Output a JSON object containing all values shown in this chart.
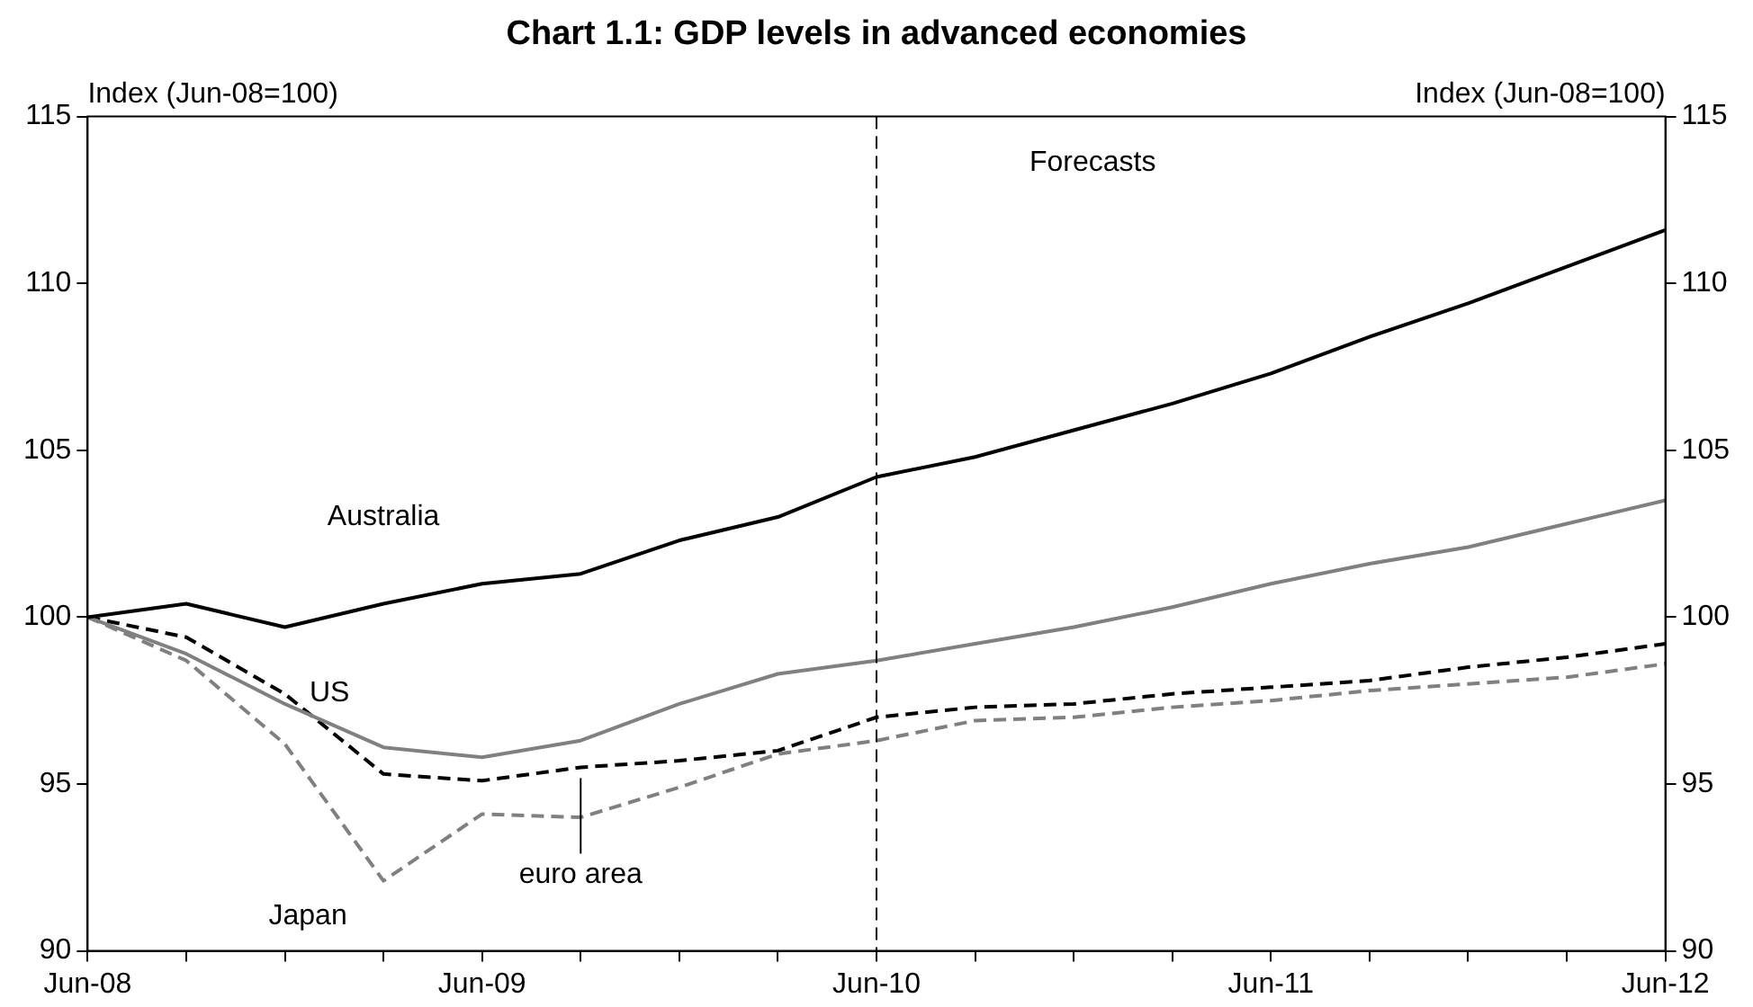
{
  "chart_data": {
    "type": "line",
    "title": "Chart 1.1: GDP levels in advanced economies",
    "ylabel": "Index (Jun-08=100)",
    "y2label": "Index (Jun-08=100)",
    "categories": [
      "Jun-08",
      null,
      null,
      null,
      "Jun-09",
      null,
      null,
      null,
      "Jun-10",
      null,
      null,
      null,
      "Jun-11",
      null,
      null,
      null,
      "Jun-12"
    ],
    "ylim": [
      90,
      115
    ],
    "yticks": [
      90,
      95,
      100,
      105,
      110,
      115
    ],
    "y2lim": [
      90,
      115
    ],
    "y2ticks": [
      90,
      95,
      100,
      105,
      110,
      115
    ],
    "grid": false,
    "legend": false,
    "marker": "none",
    "ref_lines": [
      {
        "axis": "x",
        "value": "Jun-10",
        "color": "#000000",
        "line_style": "dashed"
      }
    ],
    "annotations": [
      "Forecasts"
    ],
    "series": [
      {
        "name": "Australia",
        "color": "#000000",
        "line_style": "solid",
        "values": [
          100,
          100.4,
          99.7,
          100.4,
          101.0,
          101.3,
          102.3,
          103.0,
          104.2,
          104.8,
          105.6,
          106.4,
          107.3,
          108.4,
          109.4,
          110.5,
          111.6
        ]
      },
      {
        "name": "US",
        "color": "#808080",
        "line_style": "solid",
        "values": [
          100,
          98.9,
          97.4,
          96.1,
          95.8,
          96.3,
          97.4,
          98.3,
          98.7,
          99.2,
          99.7,
          100.3,
          101.0,
          101.6,
          102.1,
          102.8,
          103.5
        ]
      },
      {
        "name": "euro area",
        "color": "#000000",
        "line_style": "dashed",
        "values": [
          100,
          99.4,
          97.7,
          95.3,
          95.1,
          95.5,
          95.7,
          96.0,
          97.0,
          97.3,
          97.4,
          97.7,
          97.9,
          98.1,
          98.5,
          98.8,
          99.2
        ]
      },
      {
        "name": "Japan",
        "color": "#808080",
        "line_style": "dashed",
        "values": [
          100,
          98.7,
          96.2,
          92.1,
          94.1,
          94.0,
          94.9,
          95.9,
          96.3,
          96.9,
          97.0,
          97.3,
          97.5,
          97.8,
          98.0,
          98.2,
          98.6
        ]
      }
    ]
  }
}
